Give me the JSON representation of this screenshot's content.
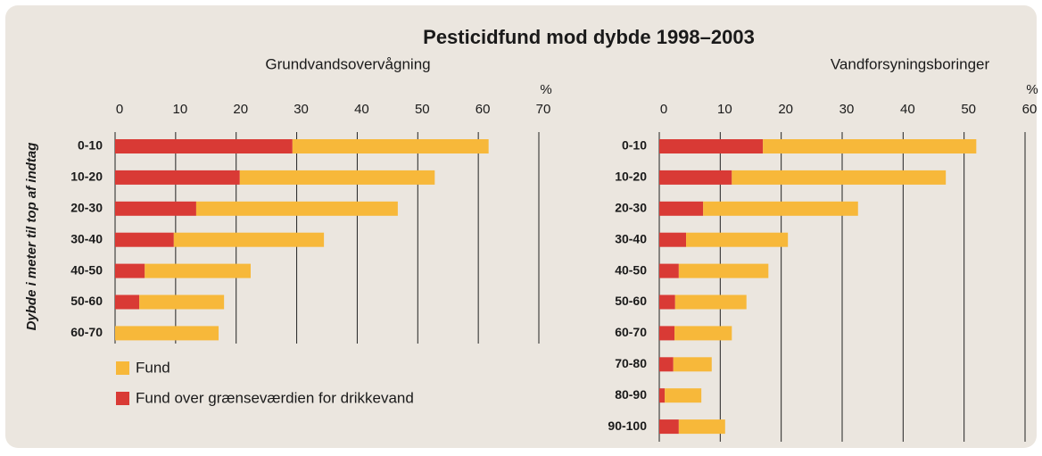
{
  "title": "Pesticidfund mod dybde 1998–2003",
  "ylabel": "Dybde i meter til top af indtag",
  "chart_data": [
    {
      "type": "bar",
      "orientation": "horizontal",
      "stacked": true,
      "subtitle": "Grundvandsovervågning",
      "xlabel": "%",
      "categories": [
        "0-10",
        "10-20",
        "20-30",
        "30-40",
        "40-50",
        "50-60",
        "60-70"
      ],
      "series": [
        {
          "name": "Fund",
          "color": "#f7b83a",
          "values": [
            32.4,
            32.2,
            33.3,
            24.8,
            17.5,
            14.0,
            17.1
          ]
        },
        {
          "name": "Fund over grænseværdien for drikkevand",
          "color": "#d93a35",
          "values": [
            29.3,
            20.6,
            13.4,
            9.7,
            4.9,
            4.0,
            0
          ]
        }
      ],
      "xlim": [
        0,
        70
      ],
      "xticks": [
        0,
        10,
        20,
        30,
        40,
        50,
        60,
        70
      ],
      "grid": true
    },
    {
      "type": "bar",
      "orientation": "horizontal",
      "stacked": true,
      "subtitle": "Vandforsyningsboringer",
      "xlabel": "%",
      "categories": [
        "0-10",
        "10-20",
        "20-30",
        "30-40",
        "40-50",
        "50-60",
        "60-70",
        "70-80",
        "80-90",
        "90-100"
      ],
      "series": [
        {
          "color": "#f7b83a",
          "values": [
            35.0,
            35.1,
            25.4,
            16.7,
            14.7,
            11.7,
            9.4,
            6.3,
            6.0,
            7.6
          ]
        },
        {
          "color": "#d93a35",
          "values": [
            17.0,
            11.9,
            7.2,
            4.4,
            3.2,
            2.6,
            2.5,
            2.3,
            0.9,
            3.2
          ]
        }
      ],
      "xlim": [
        0,
        60
      ],
      "xticks": [
        0,
        10,
        20,
        30,
        40,
        50,
        60
      ],
      "grid": true
    }
  ]
}
